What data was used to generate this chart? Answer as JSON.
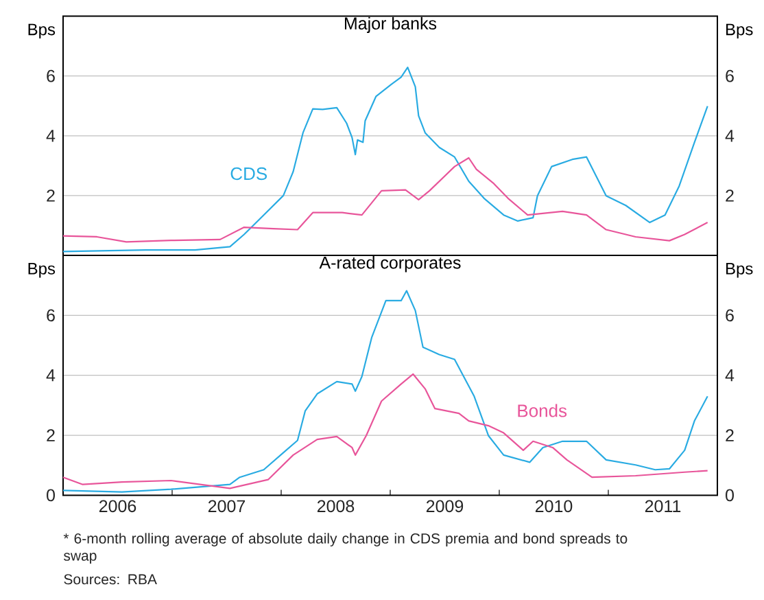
{
  "chart_data": [
    {
      "type": "line",
      "title": "Major banks",
      "xlim": [
        2006,
        2012
      ],
      "ylim": [
        0,
        8
      ],
      "yticks": [
        2,
        4,
        6
      ],
      "y2lim": [
        0,
        8
      ],
      "y2ticks": [
        2,
        4,
        6
      ],
      "ylabel": "Bps",
      "y2label": "Bps",
      "grid": "y",
      "tick_labels": "y",
      "marker": "none",
      "line_style": "solid",
      "series": [
        {
          "name": "CDS",
          "color": "#29abe2",
          "x": [
            2006.0,
            2006.76,
            2007.21,
            2007.53,
            2007.66,
            2007.84,
            2008.02,
            2008.11,
            2008.2,
            2008.29,
            2008.38,
            2008.51,
            2008.6,
            2008.65,
            2008.68,
            2008.7,
            2008.75,
            2008.77,
            2008.87,
            2009.01,
            2009.1,
            2009.16,
            2009.23,
            2009.26,
            2009.32,
            2009.45,
            2009.59,
            2009.72,
            2009.86,
            2010.04,
            2010.17,
            2010.31,
            2010.35,
            2010.48,
            2010.67,
            2010.8,
            2010.98,
            2011.16,
            2011.38,
            2011.52,
            2011.65,
            2011.79,
            2011.91
          ],
          "values": [
            0.13,
            0.18,
            0.18,
            0.29,
            0.7,
            1.35,
            2.0,
            2.8,
            4.1,
            4.9,
            4.88,
            4.94,
            4.42,
            3.94,
            3.37,
            3.86,
            3.78,
            4.5,
            5.32,
            5.72,
            5.96,
            6.29,
            5.64,
            4.67,
            4.1,
            3.61,
            3.29,
            2.48,
            1.91,
            1.35,
            1.15,
            1.26,
            1.99,
            2.97,
            3.21,
            3.29,
            1.99,
            1.67,
            1.1,
            1.35,
            2.32,
            3.78,
            4.99
          ]
        },
        {
          "color": "#e8559a",
          "x": [
            2006.0,
            2006.31,
            2006.58,
            2006.99,
            2007.44,
            2007.66,
            2007.93,
            2008.15,
            2008.29,
            2008.56,
            2008.74,
            2008.92,
            2009.14,
            2009.26,
            2009.36,
            2009.59,
            2009.72,
            2009.79,
            2009.95,
            2010.08,
            2010.26,
            2010.58,
            2010.8,
            2010.98,
            2011.25,
            2011.56,
            2011.7,
            2011.91
          ],
          "values": [
            0.65,
            0.62,
            0.45,
            0.5,
            0.53,
            0.94,
            0.89,
            0.86,
            1.43,
            1.43,
            1.35,
            2.16,
            2.19,
            1.86,
            2.16,
            2.97,
            3.26,
            2.88,
            2.4,
            1.91,
            1.35,
            1.47,
            1.35,
            0.86,
            0.62,
            0.49,
            0.7,
            1.1
          ]
        }
      ]
    },
    {
      "type": "line",
      "title": "A-rated corporates",
      "xlim": [
        2006,
        2012
      ],
      "xticks": [
        {
          "value": 2006.5,
          "label": "2006"
        },
        {
          "value": 2007,
          "label": null
        },
        {
          "value": 2007.5,
          "label": "2007"
        },
        {
          "value": 2008,
          "label": null
        },
        {
          "value": 2008.5,
          "label": "2008"
        },
        {
          "value": 2009,
          "label": null
        },
        {
          "value": 2009.5,
          "label": "2009"
        },
        {
          "value": 2010,
          "label": null
        },
        {
          "value": 2010.5,
          "label": "2010"
        },
        {
          "value": 2011,
          "label": null
        },
        {
          "value": 2011.5,
          "label": "2011"
        }
      ],
      "ylim": [
        0,
        8
      ],
      "yticks": [
        0,
        2,
        4,
        6
      ],
      "y2lim": [
        0,
        8
      ],
      "y2ticks": [
        0,
        2,
        4,
        6
      ],
      "ylabel": "Bps",
      "y2label": "Bps",
      "grid": "y",
      "marker": "none",
      "line_style": "solid",
      "annotations": [
        "* 6-month rolling average of absolute daily change in CDS premia and bond spreads to swap",
        "Sources: RBA"
      ],
      "series": [
        {
          "color": "#29abe2",
          "x": [
            2006.0,
            2006.54,
            2006.99,
            2007.53,
            2007.62,
            2007.84,
            2008.02,
            2008.15,
            2008.22,
            2008.33,
            2008.51,
            2008.65,
            2008.68,
            2008.74,
            2008.83,
            2008.96,
            2009.1,
            2009.15,
            2009.23,
            2009.3,
            2009.45,
            2009.59,
            2009.77,
            2009.9,
            2010.04,
            2010.28,
            2010.4,
            2010.58,
            2010.8,
            2010.98,
            2011.25,
            2011.43,
            2011.56,
            2011.7,
            2011.79,
            2011.91
          ],
          "values": [
            0.16,
            0.11,
            0.2,
            0.36,
            0.6,
            0.85,
            1.42,
            1.83,
            2.81,
            3.38,
            3.79,
            3.71,
            3.47,
            3.96,
            5.26,
            6.49,
            6.49,
            6.82,
            6.16,
            4.94,
            4.69,
            4.53,
            3.3,
            1.99,
            1.34,
            1.1,
            1.59,
            1.8,
            1.8,
            1.18,
            1.01,
            0.85,
            0.88,
            1.5,
            2.48,
            3.3
          ]
        },
        {
          "name": "Bonds",
          "color": "#e8559a",
          "x": [
            2006.0,
            2006.18,
            2006.54,
            2006.99,
            2007.53,
            2007.88,
            2008.11,
            2008.33,
            2008.51,
            2008.65,
            2008.68,
            2008.78,
            2008.92,
            2009.1,
            2009.21,
            2009.32,
            2009.41,
            2009.63,
            2009.72,
            2009.9,
            2010.04,
            2010.22,
            2010.31,
            2010.49,
            2010.62,
            2010.85,
            2011.25,
            2011.7,
            2011.91
          ],
          "values": [
            0.6,
            0.36,
            0.44,
            0.49,
            0.23,
            0.52,
            1.34,
            1.86,
            1.96,
            1.59,
            1.34,
            1.99,
            3.14,
            3.71,
            4.04,
            3.55,
            2.89,
            2.73,
            2.48,
            2.32,
            2.08,
            1.5,
            1.8,
            1.59,
            1.18,
            0.6,
            0.65,
            0.77,
            0.82
          ]
        }
      ]
    }
  ]
}
